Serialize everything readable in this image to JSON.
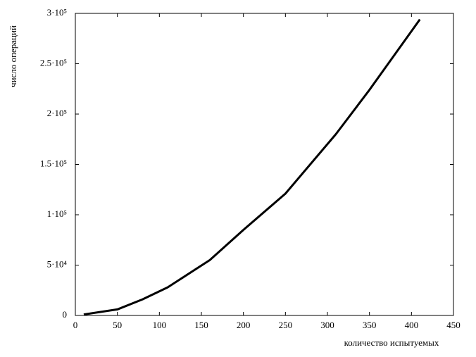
{
  "chart_data": {
    "type": "line",
    "x_label": "количество испытуемых",
    "y_label": "число операций",
    "x": [
      10,
      50,
      80,
      110,
      160,
      200,
      250,
      310,
      350,
      410
    ],
    "series": [
      {
        "color": "#000000",
        "values": [
          1000,
          6000,
          16000,
          28000,
          55000,
          85000,
          121000,
          180000,
          224000,
          294000
        ]
      }
    ],
    "xlim": [
      0,
      450
    ],
    "xticks": [
      0,
      50,
      100,
      150,
      200,
      250,
      300,
      350,
      400,
      450
    ],
    "ylim": [
      0,
      300000
    ],
    "yticks": [
      {
        "value": 0,
        "label": "0"
      },
      {
        "value": 50000,
        "label": "5·10⁴"
      },
      {
        "value": 100000,
        "label": "1·10⁵"
      },
      {
        "value": 150000,
        "label": "1.5·10⁵"
      },
      {
        "value": 200000,
        "label": "2·10⁵"
      },
      {
        "value": 250000,
        "label": "2.5·10⁵"
      },
      {
        "value": 300000,
        "label": "3·10⁵"
      }
    ],
    "grid": false
  }
}
